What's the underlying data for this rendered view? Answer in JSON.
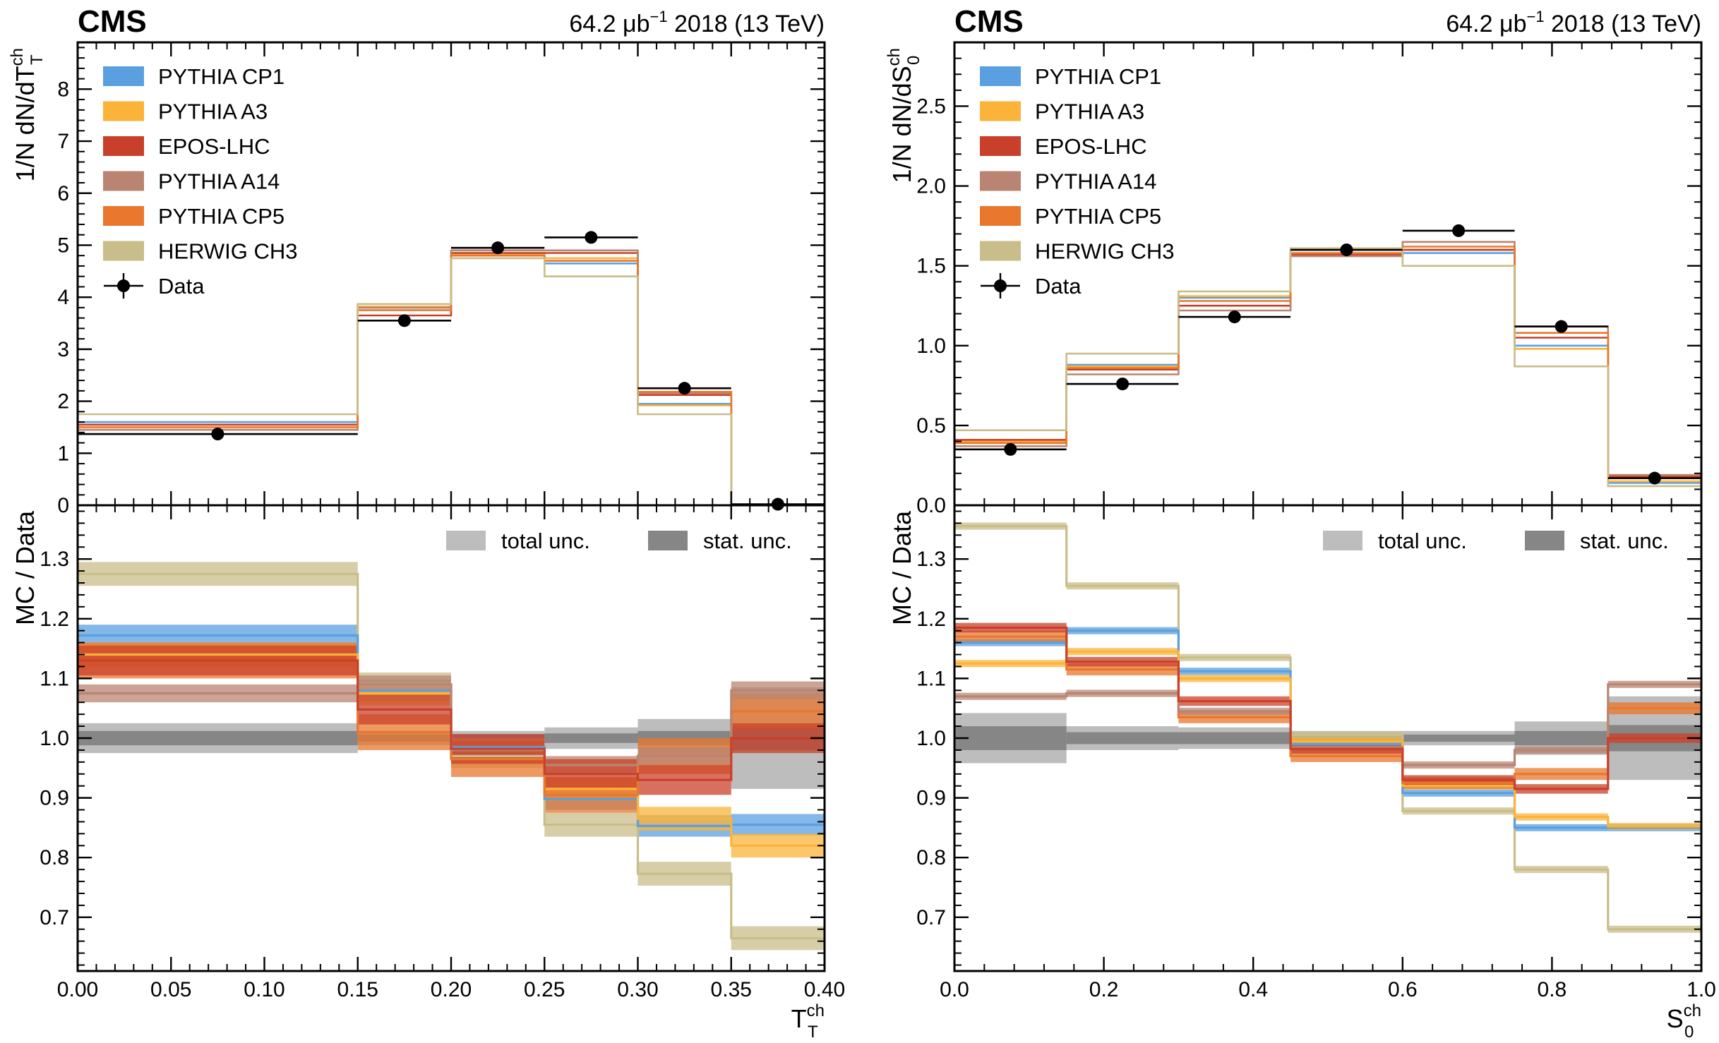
{
  "colors": {
    "PYTHIA CP1": "#5aa0e0",
    "PYTHIA A3": "#fbb33a",
    "EPOS-LHC": "#c9402a",
    "PYTHIA A14": "#b98572",
    "PYTHIA CP5": "#e9772d",
    "HERWIG CH3": "#c9bd89",
    "Data": "#000000",
    "total unc.": "#bdbdbd",
    "stat. unc.": "#868686"
  },
  "chart_data": [
    {
      "type": "line",
      "panel": "left",
      "experiment": "CMS",
      "lumi_value": "64.2 μb",
      "lumi_exp": "−1",
      "lumi_tail": " 2018 (13 TeV)",
      "xlabel_main": "T",
      "xlabel_sub": "T",
      "xlabel_sup": "ch",
      "ylabel_top": "1/N dN/dT",
      "ylabel_top_sub": "T",
      "ylabel_top_sup": "ch",
      "ylabel_bottom": "MC / Data",
      "xlim": [
        0,
        0.4
      ],
      "ylim_top": [
        0,
        8.9
      ],
      "ylim_bottom": [
        0.61,
        1.39
      ],
      "xticks": [
        "0.00",
        "0.05",
        "0.10",
        "0.15",
        "0.20",
        "0.25",
        "0.30",
        "0.35",
        "0.40"
      ],
      "yticks_top": [
        "0",
        "1",
        "2",
        "3",
        "4",
        "5",
        "6",
        "7",
        "8"
      ],
      "yticks_bottom": [
        "0.7",
        "0.8",
        "0.9",
        "1.0",
        "1.1",
        "1.2",
        "1.3"
      ],
      "edges": [
        0,
        0.15,
        0.2,
        0.25,
        0.3,
        0.35,
        0.4
      ],
      "data": {
        "name": "Data",
        "x": [
          0.075,
          0.175,
          0.225,
          0.275,
          0.325,
          0.375
        ],
        "y": [
          1.37,
          3.55,
          4.95,
          5.15,
          2.25,
          0.02
        ]
      },
      "series_top": [
        {
          "name": "PYTHIA CP1",
          "values": [
            1.6,
            3.8,
            4.85,
            4.65,
            1.95,
            0.0
          ]
        },
        {
          "name": "PYTHIA A3",
          "values": [
            1.55,
            3.82,
            4.83,
            4.75,
            1.92,
            0.0
          ]
        },
        {
          "name": "EPOS-LHC",
          "values": [
            1.55,
            3.65,
            4.85,
            4.85,
            2.12,
            0.0
          ]
        },
        {
          "name": "PYTHIA A14",
          "values": [
            1.45,
            3.8,
            4.9,
            4.9,
            2.15,
            0.0
          ]
        },
        {
          "name": "PYTHIA CP5",
          "values": [
            1.5,
            3.75,
            4.8,
            4.7,
            2.18,
            0.0
          ]
        },
        {
          "name": "HERWIG CH3",
          "values": [
            1.75,
            3.87,
            4.75,
            4.4,
            1.75,
            0.0
          ]
        }
      ],
      "series_ratio": [
        {
          "name": "HERWIG CH3",
          "values": [
            1.275,
            1.09,
            0.97,
            0.855,
            0.773,
            0.665
          ]
        },
        {
          "name": "PYTHIA CP1",
          "values": [
            1.172,
            1.08,
            0.985,
            0.898,
            0.853,
            0.855
          ]
        },
        {
          "name": "PYTHIA A3",
          "values": [
            1.14,
            1.075,
            0.98,
            0.915,
            0.865,
            0.82
          ]
        },
        {
          "name": "PYTHIA CP5",
          "values": [
            1.13,
            1.01,
            0.965,
            0.905,
            0.97,
            1.045
          ]
        },
        {
          "name": "PYTHIA A14",
          "values": [
            1.075,
            1.09,
            0.98,
            0.955,
            0.97,
            1.08
          ]
        },
        {
          "name": "EPOS-LHC",
          "values": [
            1.13,
            1.048,
            0.982,
            0.94,
            0.93,
            1.0
          ]
        }
      ],
      "total_unc": [
        0.025,
        0.012,
        0.012,
        0.018,
        0.032,
        0.085
      ],
      "stat_unc": [
        0.012,
        0.006,
        0.006,
        0.008,
        0.012,
        0.02
      ],
      "ratio_band_half_widths": {
        "PYTHIA CP1": 0.018,
        "PYTHIA A3": 0.02,
        "PYTHIA CP5": 0.03,
        "PYTHIA A14": 0.015,
        "EPOS-LHC": 0.025,
        "HERWIG CH3": 0.02
      }
    },
    {
      "type": "line",
      "panel": "right",
      "experiment": "CMS",
      "lumi_value": "64.2 μb",
      "lumi_exp": "−1",
      "lumi_tail": " 2018 (13 TeV)",
      "xlabel_main": "S",
      "xlabel_sub": "0",
      "xlabel_sup": "ch",
      "ylabel_top": "1/N dN/dS",
      "ylabel_top_sub": "0",
      "ylabel_top_sup": "ch",
      "ylabel_bottom": "MC / Data",
      "xlim": [
        0,
        1.0
      ],
      "ylim_top": [
        0,
        2.9
      ],
      "ylim_bottom": [
        0.61,
        1.39
      ],
      "xticks": [
        "0.0",
        "0.2",
        "0.4",
        "0.6",
        "0.8",
        "1.0"
      ],
      "yticks_top": [
        "0.0",
        "0.5",
        "1.0",
        "1.5",
        "2.0",
        "2.5"
      ],
      "yticks_bottom": [
        "0.7",
        "0.8",
        "0.9",
        "1.0",
        "1.1",
        "1.2",
        "1.3"
      ],
      "edges": [
        0,
        0.15,
        0.3,
        0.45,
        0.6,
        0.75,
        0.875,
        1.0
      ],
      "data": {
        "name": "Data",
        "x": [
          0.075,
          0.225,
          0.375,
          0.525,
          0.675,
          0.8125,
          0.9375
        ],
        "y": [
          0.35,
          0.76,
          1.18,
          1.6,
          1.72,
          1.12,
          0.17
        ]
      },
      "series_top": [
        {
          "name": "PYTHIA CP1",
          "values": [
            0.4,
            0.88,
            1.3,
            1.6,
            1.58,
            1.0,
            0.14
          ]
        },
        {
          "name": "PYTHIA A3",
          "values": [
            0.4,
            0.87,
            1.31,
            1.6,
            1.6,
            0.98,
            0.15
          ]
        },
        {
          "name": "EPOS-LHC",
          "values": [
            0.41,
            0.85,
            1.25,
            1.57,
            1.6,
            1.05,
            0.18
          ]
        },
        {
          "name": "PYTHIA A14",
          "values": [
            0.37,
            0.82,
            1.22,
            1.56,
            1.65,
            1.12,
            0.19
          ]
        },
        {
          "name": "PYTHIA CP5",
          "values": [
            0.39,
            0.86,
            1.28,
            1.58,
            1.62,
            1.08,
            0.17
          ]
        },
        {
          "name": "HERWIG CH3",
          "values": [
            0.47,
            0.95,
            1.34,
            1.61,
            1.5,
            0.87,
            0.12
          ]
        }
      ],
      "series_ratio": [
        {
          "name": "HERWIG CH3",
          "values": [
            1.355,
            1.255,
            1.135,
            1.005,
            0.878,
            0.78,
            0.68
          ]
        },
        {
          "name": "PYTHIA CP1",
          "values": [
            1.16,
            1.18,
            1.112,
            0.99,
            0.908,
            0.85,
            0.85
          ]
        },
        {
          "name": "PYTHIA A3",
          "values": [
            1.125,
            1.145,
            1.1,
            0.995,
            0.92,
            0.868,
            0.852
          ]
        },
        {
          "name": "PYTHIA CP5",
          "values": [
            1.17,
            1.115,
            1.035,
            0.97,
            0.925,
            0.94,
            1.05
          ]
        },
        {
          "name": "PYTHIA A14",
          "values": [
            1.07,
            1.075,
            1.045,
            0.985,
            0.955,
            0.98,
            1.09
          ]
        },
        {
          "name": "EPOS-LHC",
          "values": [
            1.185,
            1.128,
            1.062,
            0.982,
            0.93,
            0.915,
            1.0
          ]
        }
      ],
      "total_unc": [
        0.042,
        0.02,
        0.018,
        0.012,
        0.012,
        0.028,
        0.07
      ],
      "stat_unc": [
        0.02,
        0.01,
        0.01,
        0.006,
        0.006,
        0.012,
        0.022
      ],
      "ratio_band_half_widths": {
        "PYTHIA CP1": 0.006,
        "PYTHIA A3": 0.006,
        "PYTHIA CP5": 0.01,
        "PYTHIA A14": 0.006,
        "EPOS-LHC": 0.008,
        "HERWIG CH3": 0.006
      }
    }
  ],
  "legend_top": [
    "PYTHIA CP1",
    "PYTHIA A3",
    "EPOS-LHC",
    "PYTHIA A14",
    "PYTHIA CP5",
    "HERWIG CH3",
    "Data"
  ],
  "legend_bottom": [
    "total unc.",
    "stat. unc."
  ]
}
